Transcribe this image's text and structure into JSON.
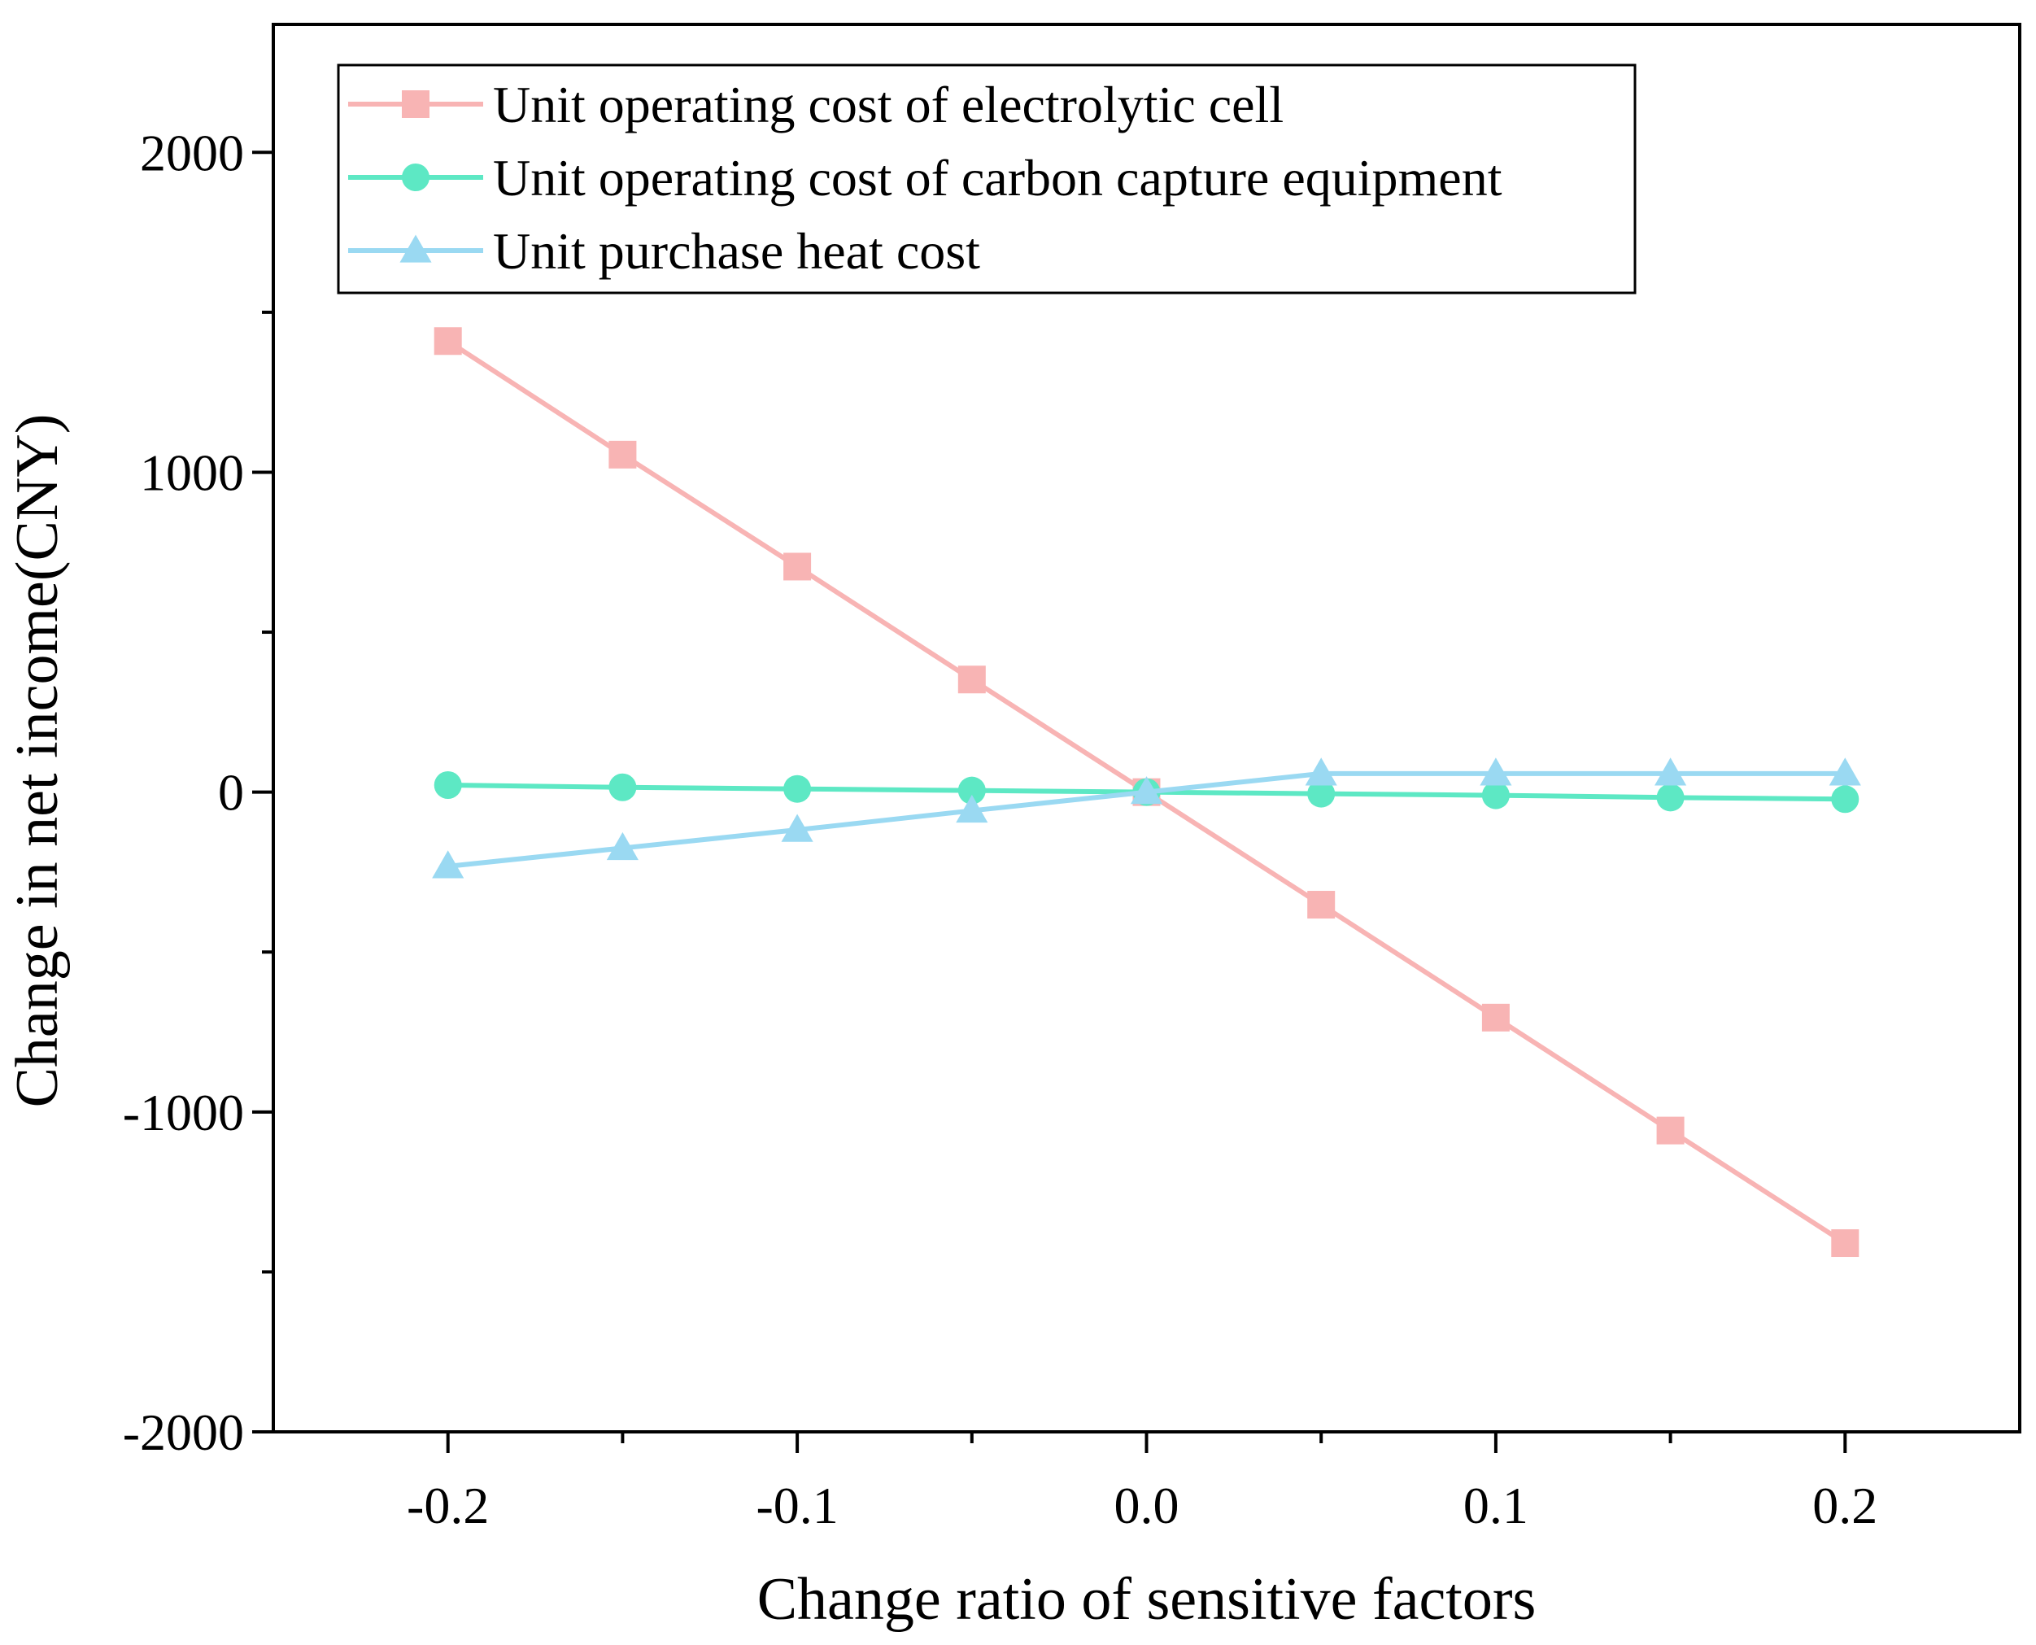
{
  "chart_data": {
    "type": "line",
    "xlabel": "Change ratio of sensitive factors",
    "ylabel": "Change in net income(CNY)",
    "xlim": [
      -0.25,
      0.25
    ],
    "ylim": [
      -2000,
      2400
    ],
    "x_ticks": [
      -0.2,
      -0.1,
      0.0,
      0.1,
      0.2
    ],
    "x_tick_labels": [
      "-0.2",
      "-0.1",
      "0.0",
      "0.1",
      "0.2"
    ],
    "y_ticks": [
      -2000,
      -1000,
      0,
      1000,
      2000
    ],
    "y_tick_labels": [
      "-2000",
      "-1000",
      "0",
      "1000",
      "2000"
    ],
    "grid": false,
    "legend_position": "top-left",
    "x": [
      -0.2,
      -0.15,
      -0.1,
      -0.05,
      0.0,
      0.05,
      0.1,
      0.15,
      0.2
    ],
    "series": [
      {
        "name": "Unit operating cost of electrolytic cell",
        "marker": "square",
        "color": "#f8b4b4",
        "values": [
          1410,
          1055,
          705,
          352,
          0,
          -352,
          -705,
          -1058,
          -1410
        ]
      },
      {
        "name": "Unit operating cost of carbon capture equipment",
        "marker": "circle",
        "color": "#5de8c4",
        "values": [
          22,
          15,
          10,
          5,
          0,
          -5,
          -10,
          -17,
          -22
        ]
      },
      {
        "name": "Unit purchase heat cost",
        "marker": "triangle",
        "color": "#9ad9f2",
        "values": [
          -232,
          -175,
          -118,
          -58,
          0,
          58,
          58,
          58,
          58
        ]
      }
    ]
  }
}
